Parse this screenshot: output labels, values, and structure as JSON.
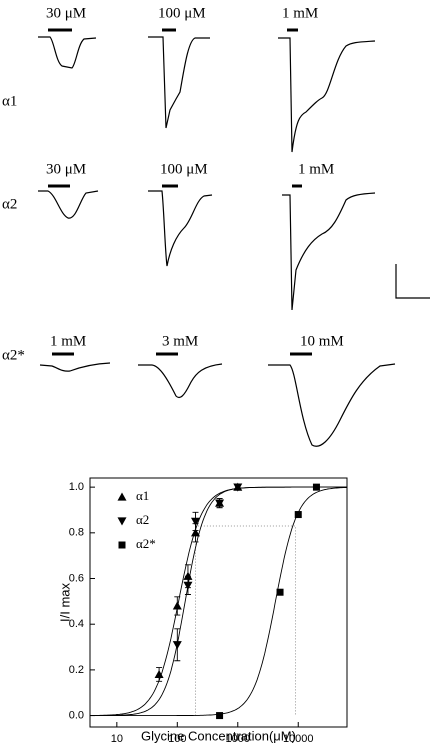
{
  "panels": {
    "rows": [
      {
        "label": "α1",
        "concentrations": [
          "30 μM",
          "100 μM",
          "1 mM"
        ]
      },
      {
        "label": "α2",
        "concentrations": [
          "30 μM",
          "100 μM",
          "1 mM"
        ]
      },
      {
        "label": "α2*",
        "concentrations": [
          "1 mM",
          "3 mM",
          "10 mM"
        ]
      }
    ]
  },
  "chart_data": {
    "type": "scatter",
    "x_label": "Glycine Concentration(μM)",
    "y_label": "I/I max",
    "x_log": true,
    "xlim": [
      3.6,
      64000
    ],
    "xticks": [
      10,
      100,
      1000,
      10000
    ],
    "ylim": [
      -0.05,
      1.04
    ],
    "yticks": [
      {
        "value": 0,
        "label": "0.0"
      },
      0.2,
      0.4,
      0.6,
      0.8,
      {
        "value": 1,
        "label": "1.0"
      }
    ],
    "legend": "top-left",
    "series": [
      {
        "name": "α1",
        "marker": "triangle-up",
        "color": "#000000",
        "x": [
          50,
          100,
          150,
          200,
          500,
          1000
        ],
        "values": [
          0.18,
          0.48,
          0.61,
          0.8,
          0.93,
          1.0
        ],
        "errors": [
          0.03,
          0.04,
          0.05,
          0.04,
          0.02,
          0.01
        ],
        "fit": {
          "ec50": 105,
          "hill": 2.3
        }
      },
      {
        "name": "α2",
        "marker": "triangle-down",
        "color": "#000000",
        "x": [
          100,
          150,
          200,
          500,
          1000
        ],
        "values": [
          0.31,
          0.57,
          0.85,
          0.93,
          1.0
        ],
        "errors": [
          0.07,
          0.04,
          0.04,
          0.02,
          0.01
        ],
        "fit": {
          "ec50": 135,
          "hill": 2.6
        }
      },
      {
        "name": "α2*",
        "marker": "square",
        "color": "#000000",
        "x": [
          500,
          5000,
          10000,
          20000
        ],
        "values": [
          0.0,
          0.54,
          0.88,
          1.0
        ],
        "errors": [
          0,
          0,
          0,
          0
        ],
        "fit": {
          "ec50": 4200,
          "hill": 2.4
        }
      }
    ],
    "guide_lines": {
      "x": [
        200,
        200,
        9000,
        9000
      ],
      "y": [
        0,
        0.83,
        0.83,
        0
      ]
    }
  }
}
